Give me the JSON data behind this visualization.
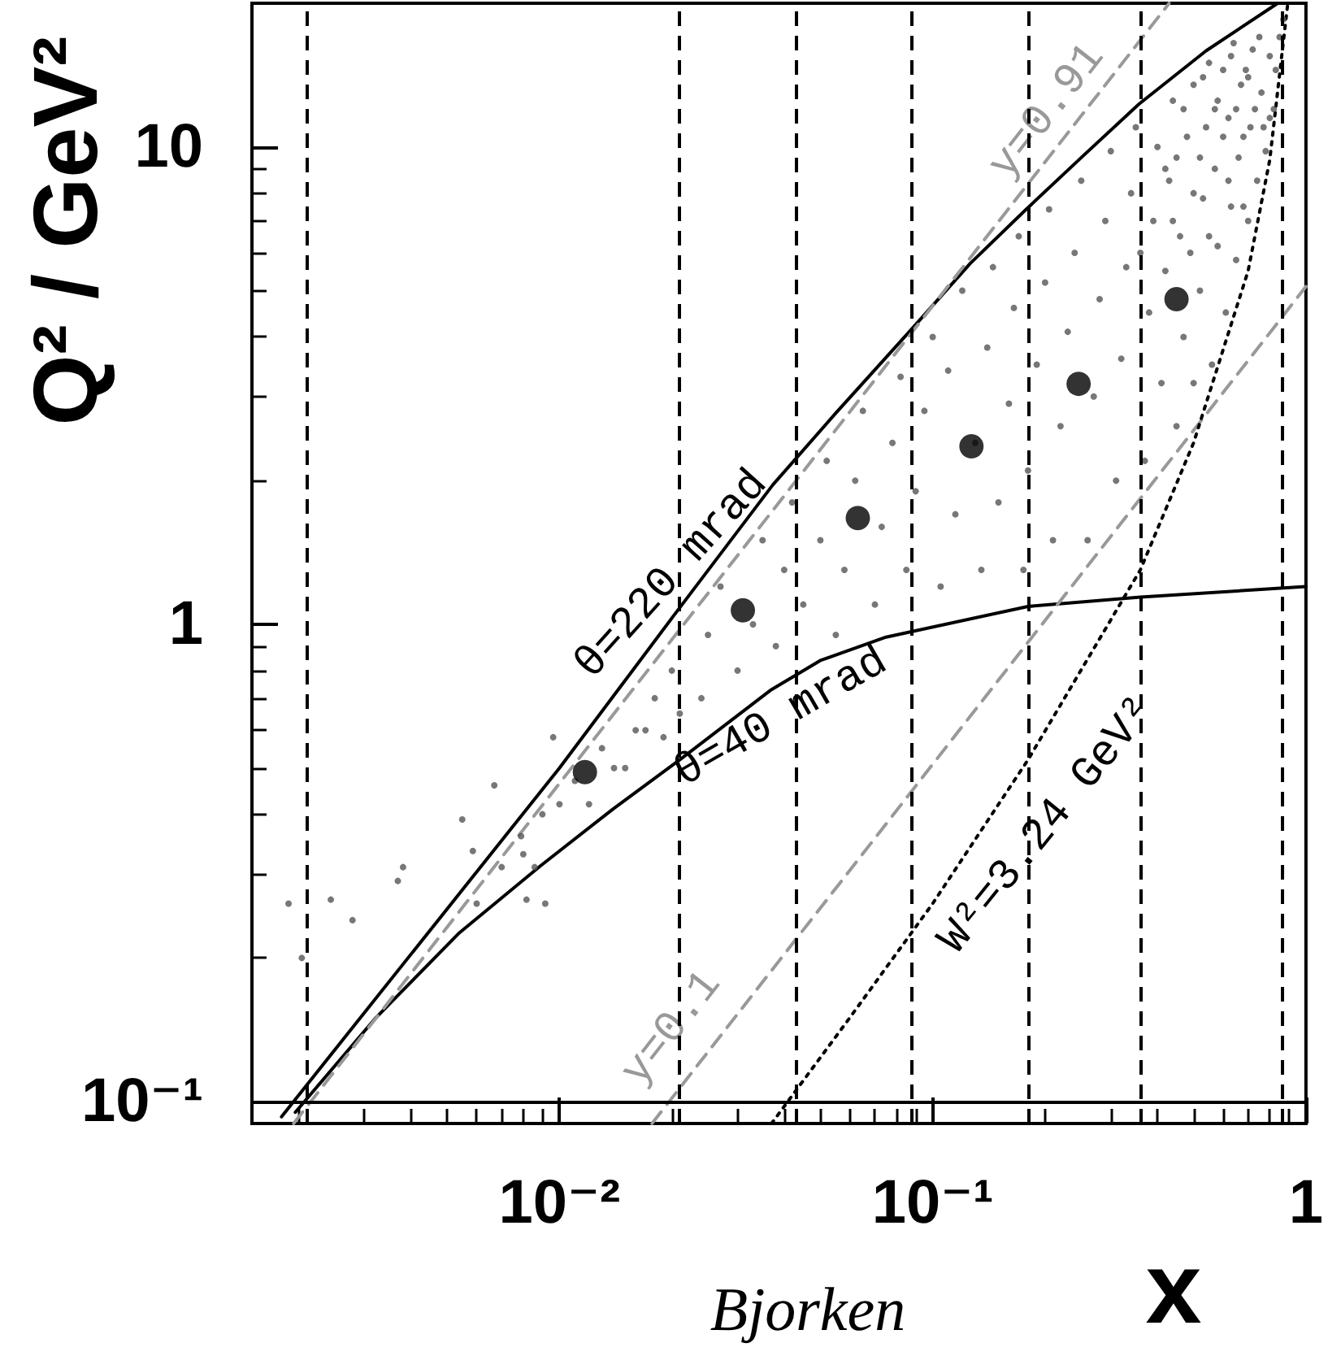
{
  "chart_data": {
    "type": "scatter",
    "xlabel": "x",
    "ylabel": "Q² / GeV²",
    "log": "xy",
    "xlim": [
      0.0015,
      1
    ],
    "ylim": [
      0.09,
      20
    ],
    "xticks": [
      {
        "value": 0.002,
        "label": null
      },
      {
        "value": 0.003,
        "label": null
      },
      {
        "value": 0.004,
        "label": null
      },
      {
        "value": 0.005,
        "label": null
      },
      {
        "value": 0.006,
        "label": null
      },
      {
        "value": 0.007,
        "label": null
      },
      {
        "value": 0.008,
        "label": null
      },
      {
        "value": 0.009,
        "label": null
      },
      {
        "value": 0.01,
        "label": "10⁻²"
      },
      {
        "value": 0.02,
        "label": null
      },
      {
        "value": 0.03,
        "label": null
      },
      {
        "value": 0.04,
        "label": null
      },
      {
        "value": 0.05,
        "label": null
      },
      {
        "value": 0.06,
        "label": null
      },
      {
        "value": 0.07,
        "label": null
      },
      {
        "value": 0.08,
        "label": null
      },
      {
        "value": 0.09,
        "label": null
      },
      {
        "value": 0.1,
        "label": "10⁻¹"
      },
      {
        "value": 0.2,
        "label": null
      },
      {
        "value": 0.3,
        "label": null
      },
      {
        "value": 0.4,
        "label": null
      },
      {
        "value": 0.5,
        "label": null
      },
      {
        "value": 0.6,
        "label": null
      },
      {
        "value": 0.7,
        "label": null
      },
      {
        "value": 0.8,
        "label": null
      },
      {
        "value": 0.9,
        "label": null
      },
      1
    ],
    "yticks": [
      {
        "value": 0.1,
        "label": "10⁻¹"
      },
      {
        "value": 0.2,
        "label": null
      },
      {
        "value": 0.3,
        "label": null
      },
      {
        "value": 0.4,
        "label": null
      },
      {
        "value": 0.5,
        "label": null
      },
      {
        "value": 0.6,
        "label": null
      },
      {
        "value": 0.7,
        "label": null
      },
      {
        "value": 0.8,
        "label": null
      },
      {
        "value": 0.9,
        "label": null
      },
      1,
      {
        "value": 2,
        "label": null
      },
      {
        "value": 3,
        "label": null
      },
      {
        "value": 4,
        "label": null
      },
      {
        "value": 5,
        "label": null
      },
      {
        "value": 6,
        "label": null
      },
      {
        "value": 7,
        "label": null
      },
      {
        "value": 8,
        "label": null
      },
      {
        "value": 9,
        "label": null
      },
      10
    ],
    "series": [
      {
        "color": "#555555",
        "marker": "circle",
        "x": [
          0.00188,
          0.00204,
          0.00244,
          0.00279,
          0.00369,
          0.00381,
          0.00549,
          0.00586,
          0.00669,
          0.00789,
          0.00816,
          0.00858,
          0.00916,
          0.00962,
          0.006,
          0.007,
          0.008,
          0.009,
          0.01,
          0.011,
          0.012,
          0.013,
          0.014,
          0.015,
          0.016,
          0.017,
          0.018,
          0.019,
          0.02,
          0.021,
          0.024,
          0.025,
          0.027,
          0.03,
          0.033,
          0.035,
          0.038,
          0.04,
          0.042,
          0.045,
          0.05,
          0.052,
          0.055,
          0.058,
          0.062,
          0.065,
          0.07,
          0.073,
          0.078,
          0.082,
          0.085,
          0.09,
          0.095,
          0.1,
          0.105,
          0.11,
          0.115,
          0.12,
          0.13,
          0.135,
          0.14,
          0.145,
          0.15,
          0.16,
          0.165,
          0.17,
          0.175,
          0.18,
          0.19,
          0.2,
          0.205,
          0.21,
          0.22,
          0.23,
          0.24,
          0.25,
          0.26,
          0.27,
          0.28,
          0.29,
          0.3,
          0.31,
          0.32,
          0.33,
          0.34,
          0.35,
          0.36,
          0.37,
          0.38,
          0.39,
          0.4,
          0.41,
          0.42,
          0.42,
          0.43,
          0.44,
          0.45,
          0.46,
          0.47,
          0.48,
          0.5,
          0.5,
          0.52,
          0.53,
          0.54,
          0.56,
          0.57,
          0.58,
          0.6,
          0.61,
          0.62,
          0.63,
          0.65,
          0.66,
          0.67,
          0.7,
          0.71,
          0.72,
          0.74,
          0.76,
          0.78,
          0.8,
          0.82,
          0.85,
          0.87,
          0.55,
          0.64,
          0.69,
          0.75,
          0.77,
          0.58,
          0.47,
          0.52,
          0.62,
          0.68,
          0.45,
          0.5,
          0.55,
          0.6,
          0.65,
          0.7,
          0.73,
          0.68,
          0.63,
          0.57,
          0.53,
          0.49,
          0.44,
          0.8,
          0.83
        ],
        "values": [
          0.26,
          0.2,
          0.265,
          0.24,
          0.29,
          0.31,
          0.39,
          0.335,
          0.46,
          0.36,
          0.265,
          0.31,
          0.26,
          0.58,
          0.26,
          0.31,
          0.33,
          0.4,
          0.42,
          0.47,
          0.42,
          0.55,
          0.5,
          0.5,
          0.6,
          0.6,
          0.7,
          0.58,
          0.8,
          0.65,
          0.7,
          0.95,
          1.2,
          0.8,
          1.0,
          1.5,
          0.9,
          1.3,
          1.8,
          1.1,
          1.5,
          2.2,
          0.95,
          1.3,
          2.0,
          2.8,
          1.1,
          1.6,
          2.4,
          3.3,
          1.3,
          1.9,
          2.8,
          4.0,
          1.2,
          3.4,
          1.7,
          5.0,
          2.4,
          1.3,
          3.8,
          5.6,
          1.8,
          2.9,
          4.6,
          6.5,
          1.3,
          2.1,
          3.5,
          5.2,
          7.4,
          1.5,
          2.6,
          4.1,
          6.0,
          8.5,
          1.5,
          3.0,
          4.8,
          7.0,
          9.8,
          2.0,
          3.6,
          5.6,
          8.0,
          11.0,
          6.0,
          2.2,
          4.5,
          7.0,
          10.0,
          3.2,
          5.5,
          9.0,
          8.5,
          12.5,
          2.6,
          6.5,
          4.0,
          10.5,
          3.2,
          13.5,
          5.0,
          7.8,
          11.0,
          3.5,
          9.0,
          6.2,
          14.5,
          4.5,
          11.5,
          7.5,
          5.8,
          9.5,
          13.5,
          7.0,
          11.0,
          16.0,
          8.5,
          13.0,
          9.8,
          15.5,
          12.0,
          17.0,
          18.5,
          15.0,
          16.5,
          14.5,
          17.0,
          11.0,
          12.5,
          12.0,
          9.5,
          8.5,
          10.5,
          9.5,
          8.0,
          6.5,
          10.5,
          12.0,
          14.0,
          12.0,
          7.5,
          15.5,
          12.0,
          14.0,
          6.0,
          7.0,
          11.5,
          14.5
        ]
      },
      {
        "type": "line",
        "color": "#000000",
        "marker": "none",
        "line_style": "solid",
        "x": [
          0.0018,
          0.01,
          0.02,
          0.0373,
          0.055,
          0.088,
          0.126,
          0.178,
          0.25,
          0.357,
          0.54,
          0.84
        ],
        "values": [
          0.093,
          0.5,
          1.03,
          1.96,
          2.77,
          4.16,
          5.7,
          7.4,
          9.5,
          12.3,
          15.9,
          20
        ]
      },
      {
        "type": "line",
        "color": "#000000",
        "marker": "none",
        "line_style": "solid",
        "x": [
          0.00196,
          0.0032,
          0.0054,
          0.0089,
          0.0139,
          0.021,
          0.037,
          0.05,
          0.075,
          0.18,
          0.36,
          1
        ],
        "values": [
          0.095,
          0.149,
          0.226,
          0.312,
          0.41,
          0.52,
          0.73,
          0.84,
          0.94,
          1.09,
          1.14,
          1.2
        ]
      },
      {
        "type": "line",
        "color": "#999999",
        "marker": "none",
        "line_style": "dashed",
        "x": [
          0.00194,
          0.43
        ],
        "values": [
          0.09,
          20
        ]
      },
      {
        "type": "line",
        "color": "#999999",
        "marker": "none",
        "line_style": "dashed",
        "x": [
          0.0177,
          1
        ],
        "values": [
          0.09,
          5.1
        ]
      },
      {
        "type": "line",
        "color": "#000000",
        "marker": "none",
        "line_style": "dotted",
        "x": [
          0.037,
          0.06,
          0.1,
          0.18,
          0.36,
          0.5,
          0.7,
          0.8,
          0.894
        ],
        "values": [
          0.09,
          0.15,
          0.26,
          0.52,
          1.3,
          2.4,
          5.5,
          9.4,
          20
        ]
      },
      {
        "color": "#000000",
        "marker": "circle",
        "x": [
          0.0117,
          0.031,
          0.063,
          0.127,
          0.246,
          0.45
        ],
        "values": [
          0.49,
          1.07,
          1.67,
          2.36,
          3.19,
          4.8
        ]
      }
    ],
    "ref_lines": [
      {
        "axis": "x",
        "value": 0.0021,
        "color": "#000000",
        "line_style": "dashed"
      },
      {
        "axis": "x",
        "value": 0.021,
        "color": "#000000",
        "line_style": "dashed"
      },
      {
        "axis": "x",
        "value": 0.043,
        "color": "#000000",
        "line_style": "dashed"
      },
      {
        "axis": "x",
        "value": 0.088,
        "color": "#000000",
        "line_style": "dashed"
      },
      {
        "axis": "x",
        "value": 0.18,
        "color": "#000000",
        "line_style": "dashed"
      },
      {
        "axis": "x",
        "value": 0.36,
        "color": "#000000",
        "line_style": "dashed"
      },
      {
        "axis": "x",
        "value": 0.86,
        "color": "#000000",
        "line_style": "dashed"
      },
      {
        "axis": "y",
        "value": 0.1,
        "color": "#000000",
        "line_style": "solid"
      }
    ],
    "annotations": [
      "θ=220 mrad",
      "θ=40 mrad",
      "y=0.91",
      "y=0.1",
      "W²=3.24 GeV²",
      "Bjorken"
    ]
  }
}
